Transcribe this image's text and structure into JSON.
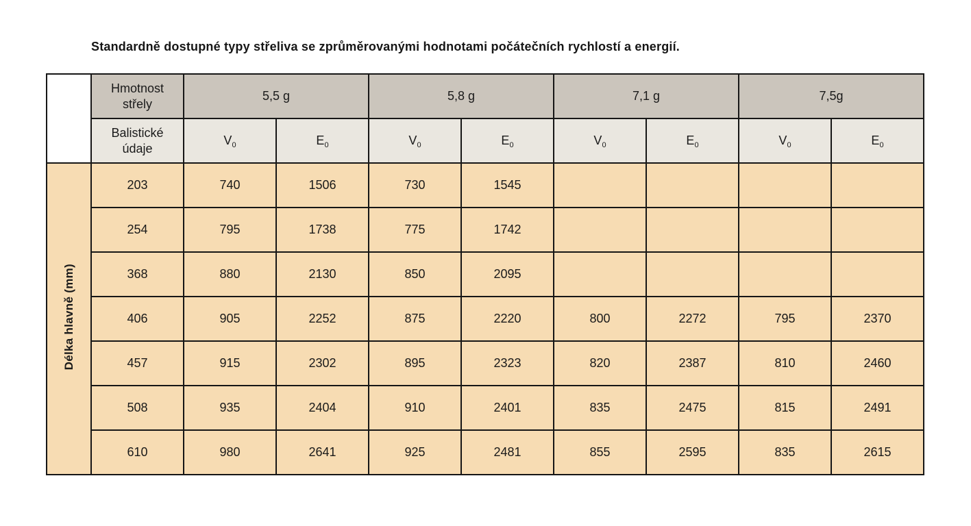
{
  "title": "Standardně dostupné typy střeliva se zprůměrovanými hodnotami počátečních rychlostí a energií.",
  "table": {
    "corner_row1": "Hmotnost\nstřely",
    "corner_row2": "Balistické\núdaje",
    "row_axis_label": "Délka hlavně (mm)",
    "weight_groups": [
      "5,5 g",
      "5,8 g",
      "7,1 g",
      "7,5g"
    ],
    "ballistic": {
      "v_letter": "V",
      "e_letter": "E",
      "subscript": "0"
    },
    "rows": [
      {
        "length": "203",
        "values": [
          "740",
          "1506",
          "730",
          "1545",
          "",
          "",
          "",
          ""
        ]
      },
      {
        "length": "254",
        "values": [
          "795",
          "1738",
          "775",
          "1742",
          "",
          "",
          "",
          ""
        ]
      },
      {
        "length": "368",
        "values": [
          "880",
          "2130",
          "850",
          "2095",
          "",
          "",
          "",
          ""
        ]
      },
      {
        "length": "406",
        "values": [
          "905",
          "2252",
          "875",
          "2220",
          "800",
          "2272",
          "795",
          "2370"
        ]
      },
      {
        "length": "457",
        "values": [
          "915",
          "2302",
          "895",
          "2323",
          "820",
          "2387",
          "810",
          "2460"
        ]
      },
      {
        "length": "508",
        "values": [
          "935",
          "2404",
          "910",
          "2401",
          "835",
          "2475",
          "815",
          "2491"
        ]
      },
      {
        "length": "610",
        "values": [
          "980",
          "2641",
          "925",
          "2481",
          "855",
          "2595",
          "835",
          "2615"
        ]
      }
    ]
  },
  "colors": {
    "header_row1_bg": "#cbc5bc",
    "header_row2_bg": "#eae7e0",
    "data_cell_bg": "#f7dcb3",
    "border": "#161616",
    "page_bg": "#ffffff",
    "text": "#1a1a1a"
  }
}
